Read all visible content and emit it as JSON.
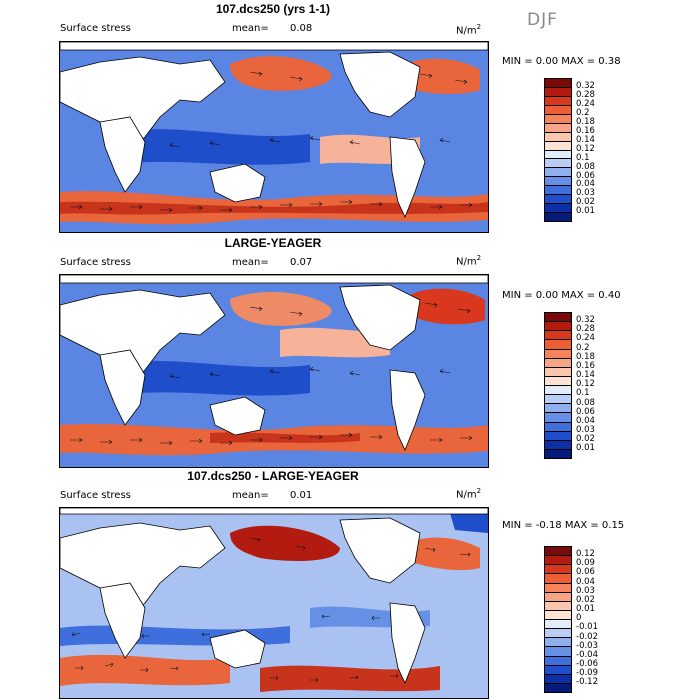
{
  "season": "DJF",
  "panels": [
    {
      "title": "107.dcs250 (yrs 1-1)",
      "field_label": "Surface stress",
      "mean_label": "mean=",
      "mean_value": "0.08",
      "unit": "N/m",
      "unit_exp": "2",
      "min_max": "MIN =    0.00 MAX =    0.38",
      "colorbar_ticks": [
        "0.32",
        "0.28",
        "0.24",
        "0.2",
        "0.18",
        "0.16",
        "0.14",
        "0.12",
        "0.1",
        "0.08",
        "0.06",
        "0.04",
        "0.03",
        "0.02",
        "0.01"
      ],
      "colorbar_colors": [
        "#7a0a0a",
        "#b31b10",
        "#d9381f",
        "#ee5e34",
        "#f5835c",
        "#f8a586",
        "#fac6ae",
        "#fde3d3",
        "#e3ecfb",
        "#b9cdf5",
        "#8fb0ee",
        "#6690e6",
        "#3f6fdc",
        "#1f4ecb",
        "#0c2fa8",
        "#061a7a"
      ]
    },
    {
      "title": "LARGE-YEAGER",
      "field_label": "Surface stress",
      "mean_label": "mean=",
      "mean_value": "0.07",
      "unit": "N/m",
      "unit_exp": "2",
      "min_max": "MIN =    0.00 MAX =    0.40",
      "colorbar_ticks": [
        "0.32",
        "0.28",
        "0.24",
        "0.2",
        "0.18",
        "0.16",
        "0.14",
        "0.12",
        "0.1",
        "0.08",
        "0.06",
        "0.04",
        "0.03",
        "0.02",
        "0.01"
      ],
      "colorbar_colors": [
        "#7a0a0a",
        "#b31b10",
        "#d9381f",
        "#ee5e34",
        "#f5835c",
        "#f8a586",
        "#fac6ae",
        "#fde3d3",
        "#e3ecfb",
        "#b9cdf5",
        "#8fb0ee",
        "#6690e6",
        "#3f6fdc",
        "#1f4ecb",
        "#0c2fa8",
        "#061a7a"
      ]
    },
    {
      "title": "107.dcs250 - LARGE-YEAGER",
      "field_label": "Surface stress",
      "mean_label": "mean=",
      "mean_value": "0.01",
      "unit": "N/m",
      "unit_exp": "2",
      "min_max": "MIN =  -0.18 MAX =    0.15",
      "colorbar_ticks": [
        "0.12",
        "0.09",
        "0.06",
        "0.04",
        "0.03",
        "0.02",
        "0.01",
        "0",
        "-0.01",
        "-0.02",
        "-0.03",
        "-0.04",
        "-0.06",
        "-0.09",
        "-0.12"
      ],
      "colorbar_colors": [
        "#7a0a0a",
        "#b31b10",
        "#d9381f",
        "#ee5e34",
        "#f5835c",
        "#f8a586",
        "#fac6ae",
        "#fde3d3",
        "#e3ecfb",
        "#b9cdf5",
        "#8fb0ee",
        "#6690e6",
        "#3f6fdc",
        "#1f4ecb",
        "#0c2fa8",
        "#061a7a"
      ]
    }
  ],
  "colors": {
    "ocean_blue": "#2f5fd6",
    "ocean_light": "#8fb0ee",
    "ocean_red": "#e0502c",
    "ocean_pink": "#f6b39a",
    "land": "#ffffff"
  }
}
